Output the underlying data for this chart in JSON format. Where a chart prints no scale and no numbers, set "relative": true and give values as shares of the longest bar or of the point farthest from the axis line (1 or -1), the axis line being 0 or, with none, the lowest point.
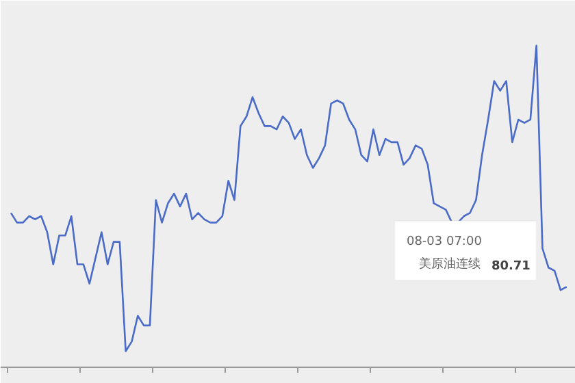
{
  "chart_data": {
    "type": "line",
    "relative": true,
    "categories": [
      null,
      null,
      null,
      null,
      null,
      null,
      null,
      null,
      null,
      null,
      null,
      null,
      null,
      null,
      null,
      null,
      null,
      null,
      null,
      null,
      null,
      null,
      null,
      null,
      null,
      null,
      null,
      null,
      null,
      null,
      null,
      null,
      null,
      null,
      null,
      null,
      null,
      null,
      null,
      null,
      null,
      null,
      null,
      null,
      null,
      null,
      null,
      null,
      null,
      null,
      null,
      null,
      null,
      null,
      null,
      null,
      null,
      null,
      null,
      null,
      null,
      null,
      null,
      null,
      null,
      null,
      null,
      null,
      null,
      null,
      null,
      null,
      null,
      null,
      null,
      null,
      null,
      null,
      null,
      null,
      null,
      null,
      null,
      null,
      null,
      null,
      null,
      null,
      null,
      null,
      null,
      null,
      null
    ],
    "series": [
      {
        "name": "美原油连续",
        "color": "#4a6bc8",
        "values": [
          0.48,
          0.45,
          0.45,
          0.47,
          0.46,
          0.47,
          0.42,
          0.32,
          0.41,
          0.41,
          0.47,
          0.32,
          0.32,
          0.26,
          0.34,
          0.42,
          0.32,
          0.39,
          0.39,
          0.05,
          0.08,
          0.16,
          0.13,
          0.13,
          0.52,
          0.45,
          0.51,
          0.54,
          0.5,
          0.54,
          0.46,
          0.48,
          0.46,
          0.45,
          0.45,
          0.47,
          0.58,
          0.52,
          0.75,
          0.78,
          0.84,
          0.79,
          0.75,
          0.75,
          0.74,
          0.78,
          0.76,
          0.71,
          0.74,
          0.66,
          0.62,
          0.65,
          0.69,
          0.82,
          0.83,
          0.82,
          0.77,
          0.74,
          0.66,
          0.64,
          0.74,
          0.66,
          0.71,
          0.7,
          0.7,
          0.63,
          0.65,
          0.69,
          0.68,
          0.63,
          0.51,
          0.5,
          0.49,
          0.45,
          0.45,
          0.47,
          0.48,
          0.52,
          0.66,
          0.77,
          0.89,
          0.86,
          0.89,
          0.7,
          0.77,
          0.76,
          0.77,
          1,
          0.37,
          0.31,
          0.3,
          0.24,
          0.25
        ]
      }
    ],
    "annotations": [
      "08-03 07:00",
      "80.71"
    ],
    "grid": false
  }
}
